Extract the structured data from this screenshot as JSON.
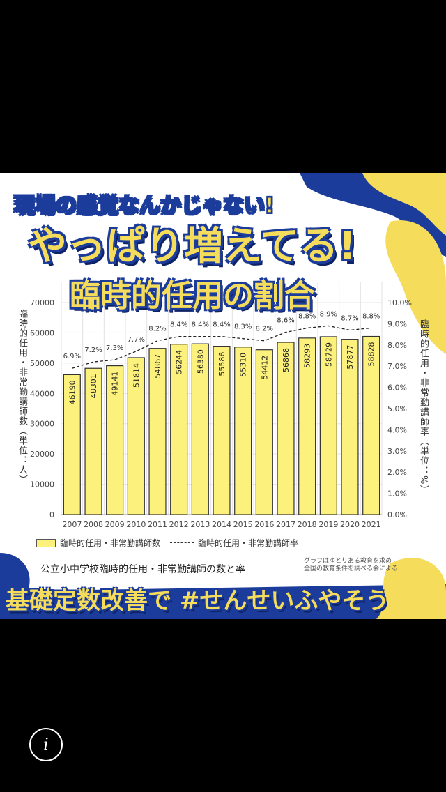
{
  "headline": {
    "line1": "現場の感覚なんかじゃない!",
    "line2": "やっぱり増えてる!",
    "line3": "臨時的任用の割合"
  },
  "footer_text": "基礎定数改善で #せんせいふやそう",
  "info_icon": "i",
  "colors": {
    "bar": "#fbf17c",
    "accent_blue": "#1c3c9c",
    "accent_yellow": "#f5dc5a"
  },
  "chart_data": {
    "type": "bar",
    "title": "公立小中学校臨時的任用・非常勤講師の数と率",
    "source": [
      "グラフはゆとりある教育を求め",
      "全国の教育条件を調べる会による"
    ],
    "categories": [
      "2007",
      "2008",
      "2009",
      "2010",
      "2011",
      "2012",
      "2013",
      "2014",
      "2015",
      "2016",
      "2017",
      "2018",
      "2019",
      "2020",
      "2021"
    ],
    "series": [
      {
        "name": "臨時的任用・非常勤講師数",
        "axis": "left",
        "type": "bar",
        "values": [
          46190,
          48301,
          49141,
          51814,
          54867,
          56244,
          56380,
          55586,
          55310,
          54412,
          56868,
          58293,
          58729,
          57877,
          58828
        ]
      },
      {
        "name": "臨時的任用・非常勤講師率",
        "axis": "right",
        "type": "line",
        "values": [
          6.9,
          7.2,
          7.3,
          7.7,
          8.2,
          8.4,
          8.4,
          8.4,
          8.3,
          8.2,
          8.6,
          8.8,
          8.9,
          8.7,
          8.8
        ],
        "labels": [
          "6.9%",
          "7.2%",
          "7.3%",
          "7.7%",
          "8.2%",
          "8.4%",
          "8.4%",
          "8.4%",
          "8.3%",
          "8.2%",
          "8.6%",
          "8.8%",
          "8.9%",
          "8.7%",
          "8.8%"
        ]
      }
    ],
    "ylabel_left": "臨時的任用・非常勤講師数（単位：人）",
    "ylabel_right": "臨時的任用・非常勤講師率（単位：%）",
    "ylim_left": [
      0,
      70000
    ],
    "ylim_right": [
      0,
      10
    ],
    "yticks_left": [
      "0",
      "10000",
      "20000",
      "30000",
      "40000",
      "50000",
      "60000",
      "70000"
    ],
    "yticks_right": [
      "0.0%",
      "1.0%",
      "2.0%",
      "3.0%",
      "4.0%",
      "5.0%",
      "6.0%",
      "7.0%",
      "8.0%",
      "9.0%",
      "10.0%"
    ],
    "grid": true,
    "legend_position": "bottom"
  }
}
